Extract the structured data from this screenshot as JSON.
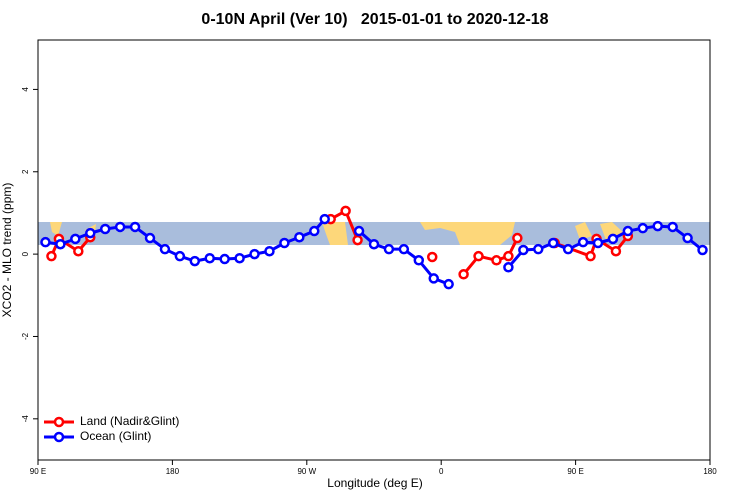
{
  "chart_data": {
    "type": "line",
    "title": "0-10N April (Ver 10)   2015-01-01 to 2020-12-18",
    "x_label": "Longitude (deg E)",
    "y_label": "XCO2 - MLO trend (ppm)",
    "xlim": [
      90,
      540
    ],
    "ylim": [
      -5,
      5.2
    ],
    "xticks": [
      {
        "value": 90,
        "label": "90 E"
      },
      180,
      {
        "value": 270,
        "label": "90 W"
      },
      {
        "value": 360,
        "label": "0"
      },
      {
        "value": 450,
        "label": "90 E"
      },
      {
        "value": 540,
        "label": "180"
      }
    ],
    "yticks": [
      -4,
      -2,
      0,
      2,
      4
    ],
    "legend": "bottom-left",
    "series": [
      {
        "name": "Land (Nadir&Glint)",
        "color": "#ff0000",
        "x": [
          99,
          104,
          117,
          125,
          null,
          286,
          296,
          304,
          null,
          354,
          null,
          375,
          385,
          397,
          405,
          411,
          null,
          436,
          460,
          464,
          477,
          485
        ],
        "values": [
          -0.05,
          0.37,
          0.07,
          0.41,
          null,
          0.85,
          1.05,
          0.34,
          null,
          -0.07,
          null,
          -0.49,
          -0.05,
          -0.15,
          -0.05,
          0.39,
          null,
          0.27,
          -0.05,
          0.37,
          0.07,
          0.44
        ]
      },
      {
        "name": "Ocean (Glint)",
        "color": "#0000ff",
        "x": [
          95,
          105,
          115,
          125,
          135,
          145,
          155,
          165,
          175,
          185,
          195,
          205,
          215,
          225,
          235,
          245,
          255,
          265,
          275,
          282,
          null,
          305,
          315,
          325,
          335,
          345,
          355,
          365,
          null,
          405,
          415,
          425,
          435,
          445,
          455,
          465,
          475,
          485,
          495,
          505,
          515,
          525,
          535
        ],
        "values": [
          0.29,
          0.24,
          0.37,
          0.51,
          0.61,
          0.66,
          0.66,
          0.39,
          0.12,
          -0.05,
          -0.17,
          -0.1,
          -0.12,
          -0.1,
          0,
          0.07,
          0.27,
          0.41,
          0.56,
          0.85,
          null,
          0.56,
          0.24,
          0.12,
          0.12,
          -0.15,
          -0.59,
          -0.73,
          null,
          -0.32,
          0.1,
          0.12,
          0.27,
          0.12,
          0.29,
          0.27,
          0.37,
          0.56,
          0.63,
          0.68,
          0.66,
          0.39,
          0.1
        ]
      }
    ]
  }
}
